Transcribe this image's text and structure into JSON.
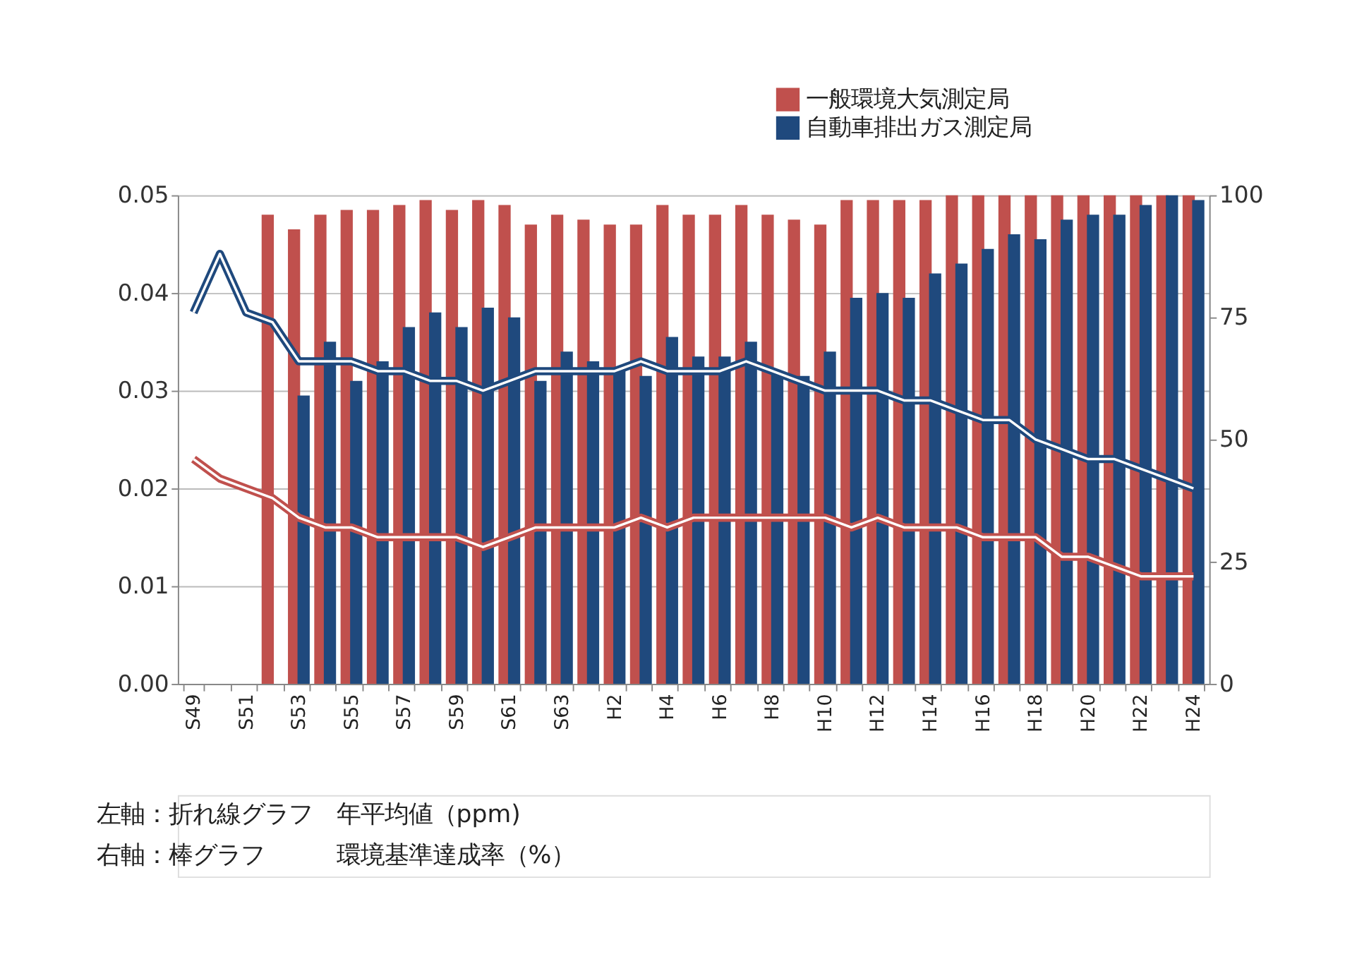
{
  "chart_data": {
    "type": "bar",
    "categories": [
      "S49",
      null,
      "S51",
      null,
      "S53",
      null,
      "S55",
      null,
      "S57",
      null,
      "S59",
      null,
      "S61",
      null,
      "S63",
      null,
      "H2",
      null,
      "H4",
      null,
      "H6",
      null,
      "H8",
      null,
      "H10",
      null,
      "H12",
      null,
      "H14",
      null,
      "H16",
      null,
      "H18",
      null,
      "H20",
      null,
      "H22",
      null,
      "H24"
    ],
    "series": [
      {
        "name": "一般環境大気測定局",
        "color": "#c0504d",
        "axis": "y2",
        "values": [
          null,
          null,
          null,
          96,
          93,
          96,
          97,
          97,
          98,
          99,
          97,
          99,
          98,
          94,
          96,
          95,
          94,
          94,
          98,
          96,
          96,
          98,
          96,
          95,
          94,
          99,
          99,
          99,
          99,
          100,
          100,
          100,
          100,
          100,
          100,
          100,
          100,
          100,
          100
        ]
      },
      {
        "name": "自動車排出ガス測定局",
        "color": "#1f497d",
        "axis": "y2",
        "values": [
          null,
          null,
          null,
          null,
          59,
          70,
          62,
          66,
          73,
          76,
          73,
          77,
          75,
          62,
          68,
          66,
          64,
          63,
          71,
          67,
          67,
          70,
          64,
          63,
          68,
          79,
          80,
          79,
          84,
          86,
          89,
          92,
          91,
          95,
          96,
          96,
          98,
          100,
          99
        ]
      },
      {
        "color": "#c0504d",
        "type": "line",
        "values": [
          0.023,
          0.021,
          0.02,
          0.019,
          0.017,
          0.016,
          0.016,
          0.015,
          0.015,
          0.015,
          0.015,
          0.014,
          0.015,
          0.016,
          0.016,
          0.016,
          0.016,
          0.017,
          0.016,
          0.017,
          0.017,
          0.017,
          0.017,
          0.017,
          0.017,
          0.016,
          0.017,
          0.016,
          0.016,
          0.016,
          0.015,
          0.015,
          0.015,
          0.013,
          0.013,
          0.012,
          0.011,
          0.011,
          0.011
        ]
      },
      {
        "color": "#1f497d",
        "type": "line",
        "values": [
          0.038,
          0.044,
          0.038,
          0.037,
          0.033,
          0.033,
          0.033,
          0.032,
          0.032,
          0.031,
          0.031,
          0.03,
          0.031,
          0.032,
          0.032,
          0.032,
          0.032,
          0.033,
          0.032,
          0.032,
          0.032,
          0.033,
          0.032,
          0.031,
          0.03,
          0.03,
          0.03,
          0.029,
          0.029,
          0.028,
          0.027,
          0.027,
          0.025,
          0.024,
          0.023,
          0.023,
          0.022,
          0.021,
          0.02
        ]
      }
    ],
    "ylim": [
      0,
      0.05
    ],
    "yticks": [
      {
        "value": 0,
        "label": "0.00"
      },
      {
        "value": 0.01,
        "label": "0.01"
      },
      {
        "value": 0.02,
        "label": "0.02"
      },
      {
        "value": 0.03,
        "label": "0.03"
      },
      {
        "value": 0.04,
        "label": "0.04"
      },
      {
        "value": 0.05,
        "label": "0.05"
      }
    ],
    "y2lim": [
      0,
      100
    ],
    "y2ticks": [
      0,
      25,
      50,
      75,
      100
    ],
    "grid": "y",
    "legend": "top right",
    "marker": "none",
    "line_style": "solid",
    "annotations": [
      "左軸：折れ線グラフ　年平均値（ppm)",
      "右軸：棒グラフ　　　環境基準達成率（%）"
    ]
  }
}
